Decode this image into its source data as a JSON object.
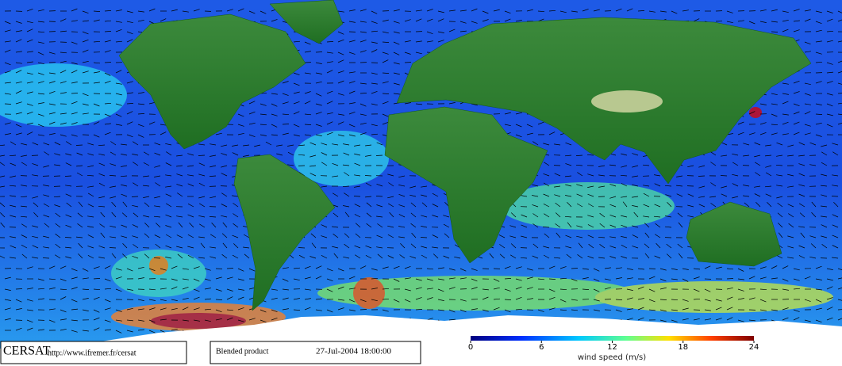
{
  "header": {
    "logo": "CERSAT",
    "url": "http://www.ifremer.fr/cersat"
  },
  "product": {
    "name": "Blended product",
    "date": "27-Jul-2004 18:00:00"
  },
  "colorbar": {
    "label": "wind speed (m/s)",
    "range": [
      0,
      24
    ],
    "ticks": [
      0,
      6,
      12,
      18,
      24
    ]
  }
}
